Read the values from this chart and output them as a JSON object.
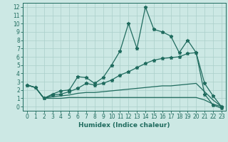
{
  "title": "",
  "xlabel": "Humidex (Indice chaleur)",
  "xlim": [
    -0.5,
    23.5
  ],
  "ylim": [
    -0.5,
    12.5
  ],
  "xticks": [
    0,
    1,
    2,
    3,
    4,
    5,
    6,
    7,
    8,
    9,
    10,
    11,
    12,
    13,
    14,
    15,
    16,
    17,
    18,
    19,
    20,
    21,
    22,
    23
  ],
  "yticks": [
    0,
    1,
    2,
    3,
    4,
    5,
    6,
    7,
    8,
    9,
    10,
    11,
    12
  ],
  "bg_color": "#cce8e4",
  "grid_color": "#aacfca",
  "line_color": "#1f6b5e",
  "line_width": 0.9,
  "marker": "*",
  "marker_size": 3.5,
  "series": [
    {
      "x": [
        0,
        1,
        2,
        3,
        4,
        5,
        6,
        7,
        8,
        9,
        10,
        11,
        12,
        13,
        14,
        15,
        16,
        17,
        18,
        19,
        20,
        21,
        22,
        23
      ],
      "y": [
        2.6,
        2.3,
        1.0,
        1.5,
        1.9,
        2.0,
        3.6,
        3.5,
        2.8,
        3.5,
        5.0,
        6.7,
        10.0,
        7.0,
        12.0,
        9.3,
        9.0,
        8.5,
        6.5,
        8.0,
        6.5,
        1.5,
        0.2,
        -0.2
      ],
      "has_marker": true
    },
    {
      "x": [
        0,
        1,
        2,
        3,
        4,
        5,
        6,
        7,
        8,
        9,
        10,
        11,
        12,
        13,
        14,
        15,
        16,
        17,
        18,
        19,
        20,
        21,
        22,
        23
      ],
      "y": [
        2.6,
        2.3,
        1.0,
        1.4,
        1.5,
        1.8,
        2.2,
        2.8,
        2.6,
        2.8,
        3.2,
        3.8,
        4.2,
        4.7,
        5.2,
        5.6,
        5.8,
        5.9,
        6.0,
        6.4,
        6.5,
        2.8,
        1.3,
        0.0
      ],
      "has_marker": true
    },
    {
      "x": [
        0,
        1,
        2,
        3,
        4,
        5,
        6,
        7,
        8,
        9,
        10,
        11,
        12,
        13,
        14,
        15,
        16,
        17,
        18,
        19,
        20,
        21,
        22,
        23
      ],
      "y": [
        2.6,
        2.3,
        1.0,
        1.2,
        1.3,
        1.4,
        1.6,
        1.7,
        1.7,
        1.8,
        1.9,
        2.0,
        2.1,
        2.2,
        2.3,
        2.4,
        2.5,
        2.5,
        2.6,
        2.7,
        2.8,
        1.8,
        0.8,
        0.0
      ],
      "has_marker": false
    },
    {
      "x": [
        0,
        1,
        2,
        3,
        4,
        5,
        6,
        7,
        8,
        9,
        10,
        11,
        12,
        13,
        14,
        15,
        16,
        17,
        18,
        19,
        20,
        21,
        22,
        23
      ],
      "y": [
        2.6,
        2.3,
        1.0,
        1.0,
        1.0,
        1.1,
        1.1,
        1.1,
        1.1,
        1.1,
        1.1,
        1.1,
        1.1,
        1.1,
        1.1,
        1.1,
        1.1,
        1.1,
        1.1,
        1.1,
        1.1,
        0.8,
        0.3,
        0.0
      ],
      "has_marker": false
    }
  ]
}
